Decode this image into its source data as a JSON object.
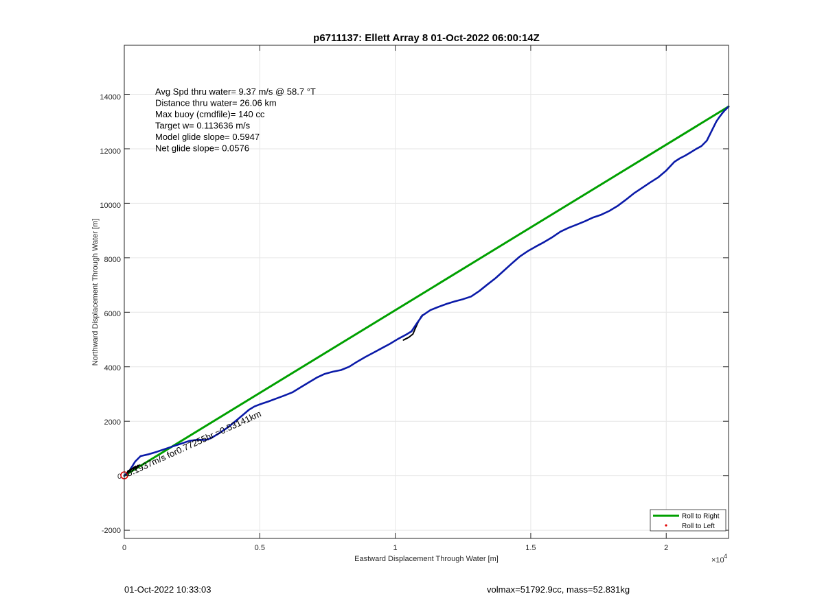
{
  "chart_data": {
    "type": "line",
    "title": "p6711137: Ellett Array 8 01-Oct-2022 06:00:14Z",
    "xlabel": "Eastward Displacement Through Water [m]",
    "ylabel": "Northward Displacement Through Water [m]",
    "x_exponent_label": "×10",
    "x_exponent_power": "4",
    "xlim": [
      0,
      22300
    ],
    "ylim": [
      -2300,
      15800
    ],
    "x_ticks": [
      0,
      5000,
      10000,
      15000,
      20000
    ],
    "x_tick_labels": [
      "0",
      "0.5",
      "1",
      "1.5",
      "2"
    ],
    "y_ticks": [
      -2000,
      0,
      2000,
      4000,
      6000,
      8000,
      10000,
      12000,
      14000
    ],
    "y_tick_labels": [
      "-2000",
      "",
      "2000",
      "4000",
      "6000",
      "8000",
      "10000",
      "12000",
      "14000"
    ],
    "grid": true,
    "legend_position": "bottom-right",
    "legend": [
      "Roll to Right",
      "Roll to Left"
    ],
    "annotations": [
      "Avg Spd thru water=  9.37 m/s @  58.7 °T",
      "Distance thru water= 26.06 km",
      "Max buoy (cmdfile)= 140 cc",
      "Target w= 0.113636 m/s",
      "Model glide slope= 0.5947",
      "Net glide slope= 0.0576"
    ],
    "segment_label": "0.1937m/s for0.77255hr =0.53141km",
    "start_marker_label": "0",
    "series": [
      {
        "name": "Roll to Right",
        "color": "#00a000",
        "x": [
          0,
          22300
        ],
        "y": [
          0,
          13550
        ]
      },
      {
        "color": "#000000",
        "x": [
          10300,
          10500,
          10650,
          10750,
          10850,
          10950,
          11000
        ],
        "y": [
          4980,
          5080,
          5200,
          5430,
          5650,
          5830,
          5900
        ]
      },
      {
        "color": "#0a1aa8",
        "x": [
          0,
          200,
          400,
          600,
          900,
          1200,
          1500,
          1800,
          2100,
          2400,
          2700,
          3000,
          3200,
          3500,
          3800,
          4100,
          4400,
          4600,
          4800,
          5000,
          5300,
          5600,
          5900,
          6200,
          6500,
          6800,
          7100,
          7400,
          7700,
          8000,
          8300,
          8600,
          8900,
          9200,
          9500,
          9800,
          10100,
          10400,
          10600,
          10800,
          11000,
          11300,
          11600,
          11900,
          12200,
          12500,
          12800,
          13100,
          13400,
          13700,
          14000,
          14300,
          14600,
          14900,
          15200,
          15500,
          15800,
          16100,
          16400,
          16700,
          17000,
          17300,
          17600,
          17900,
          18200,
          18500,
          18800,
          19100,
          19400,
          19700,
          20000,
          20300,
          20500,
          20700,
          20900,
          21100,
          21300,
          21500,
          21700,
          21850,
          21950,
          22050,
          22150,
          22300
        ],
        "y": [
          0,
          200,
          520,
          720,
          790,
          880,
          980,
          1080,
          1180,
          1280,
          1320,
          1310,
          1380,
          1560,
          1760,
          2000,
          2250,
          2420,
          2540,
          2620,
          2720,
          2830,
          2940,
          3060,
          3240,
          3420,
          3600,
          3740,
          3820,
          3880,
          4000,
          4190,
          4360,
          4520,
          4680,
          4840,
          5020,
          5180,
          5300,
          5600,
          5880,
          6080,
          6200,
          6310,
          6400,
          6480,
          6580,
          6780,
          7020,
          7250,
          7520,
          7790,
          8050,
          8250,
          8420,
          8580,
          8760,
          8960,
          9100,
          9220,
          9340,
          9480,
          9580,
          9720,
          9900,
          10120,
          10360,
          10560,
          10760,
          10950,
          11200,
          11520,
          11650,
          11750,
          11870,
          11990,
          12100,
          12300,
          12700,
          13000,
          13150,
          13280,
          13400,
          13550
        ]
      }
    ]
  },
  "footer": {
    "timestamp": "01-Oct-2022 10:33:03",
    "vol_mass": "volmax=51792.9cc, mass=52.831kg"
  }
}
